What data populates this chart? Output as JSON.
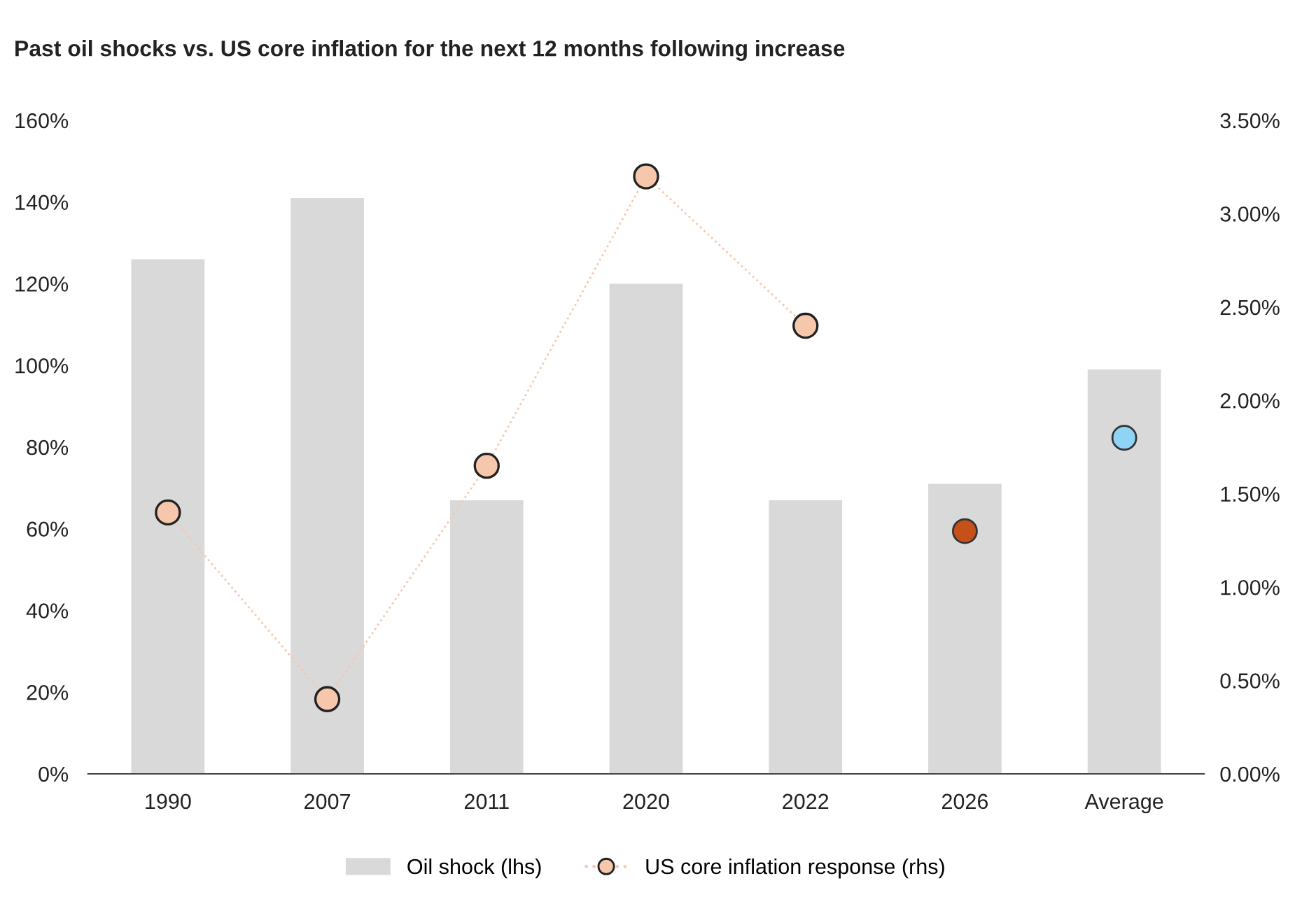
{
  "chart_data": {
    "type": "bar",
    "title": "Past oil shocks vs. US core inflation for the next 12 months following increase",
    "categories": [
      "1990",
      "2007",
      "2011",
      "2020",
      "2022",
      "2026",
      "Average"
    ],
    "series": [
      {
        "name": "Oil shock (lhs)",
        "color": "#d9d9d9",
        "values": [
          126,
          141,
          67,
          120,
          67,
          71,
          99
        ]
      },
      {
        "name": "US core inflation response (rhs)",
        "type": "line",
        "axis": "y2",
        "color": "#f6c7ab",
        "line_style": "dotted",
        "marker": "circle",
        "values": [
          1.4,
          0.4,
          1.65,
          3.2,
          2.4,
          null,
          null
        ]
      },
      {
        "type": "scatter",
        "axis": "y2",
        "marker": "circle",
        "colors": [
          null,
          null,
          null,
          null,
          null,
          "#c5501a",
          "#8fd3f5"
        ],
        "values": [
          null,
          null,
          null,
          null,
          null,
          1.3,
          1.8
        ]
      }
    ],
    "ylim": [
      0,
      160
    ],
    "yticks": [
      {
        "value": 0,
        "label": "0%"
      },
      {
        "value": 20,
        "label": "20%"
      },
      {
        "value": 40,
        "label": "40%"
      },
      {
        "value": 60,
        "label": "60%"
      },
      {
        "value": 80,
        "label": "80%"
      },
      {
        "value": 100,
        "label": "100%"
      },
      {
        "value": 120,
        "label": "120%"
      },
      {
        "value": 140,
        "label": "140%"
      },
      {
        "value": 160,
        "label": "160%"
      }
    ],
    "y2lim": [
      0,
      3.5
    ],
    "y2ticks": [
      {
        "value": 0,
        "label": "0.00%"
      },
      {
        "value": 0.5,
        "label": "0.50%"
      },
      {
        "value": 1,
        "label": "1.00%"
      },
      {
        "value": 1.5,
        "label": "1.50%"
      },
      {
        "value": 2,
        "label": "2.00%"
      },
      {
        "value": 2.5,
        "label": "2.50%"
      },
      {
        "value": 3,
        "label": "3.00%"
      },
      {
        "value": 3.5,
        "label": "3.50%"
      }
    ],
    "grid": false,
    "legend": "bottom"
  }
}
